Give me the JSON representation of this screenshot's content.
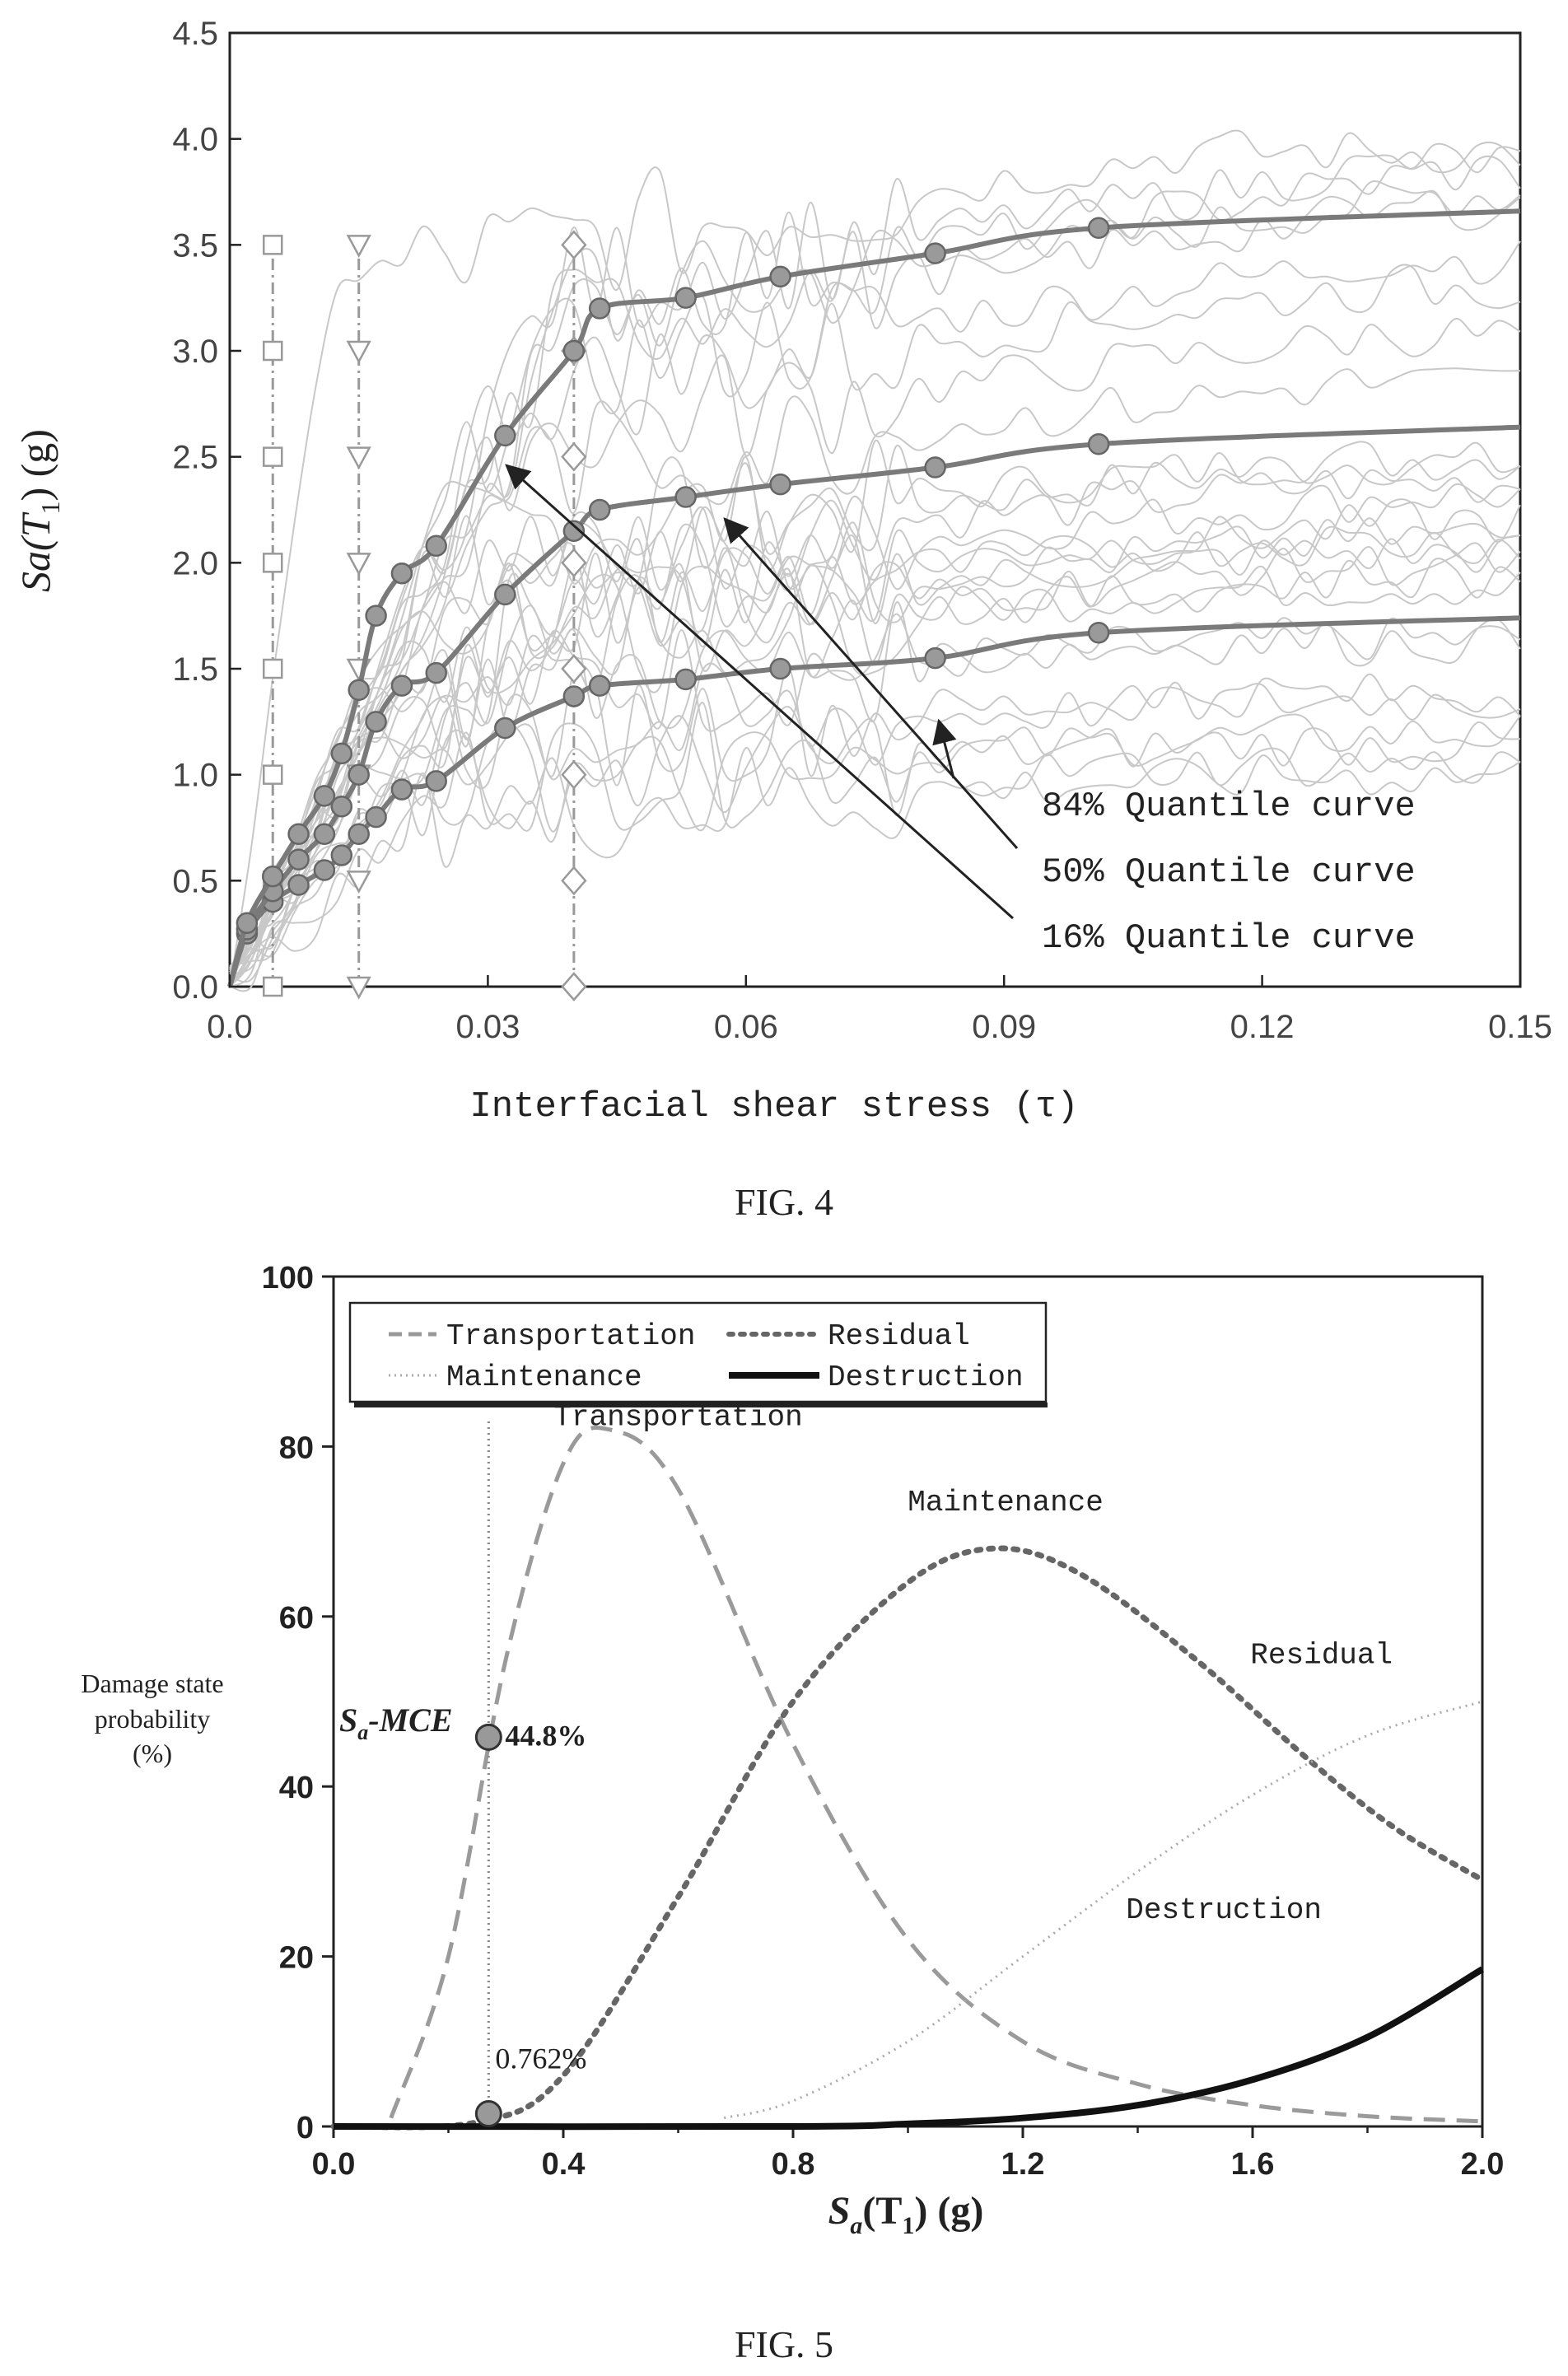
{
  "chart_data": [
    {
      "type": "line",
      "xlabel": "Interfacial shear stress (τ)",
      "ylabel": "Sa(T₁) (g)",
      "xlim": [
        0,
        0.15
      ],
      "ylim": [
        0,
        4.5
      ],
      "x_ticks": [
        "0.0",
        "0.03",
        "0.06",
        "0.09",
        "0.12",
        "0.15"
      ],
      "y_ticks": [
        "0.0",
        "0.5",
        "1.0",
        "1.5",
        "2.0",
        "2.5",
        "3.0",
        "3.5",
        "4.0",
        "4.5"
      ],
      "grid": false,
      "series": [
        {
          "x": [
            0,
            0.002,
            0.005,
            0.008,
            0.011,
            0.013,
            0.015,
            0.017,
            0.02,
            0.024,
            0.032,
            0.04,
            0.043,
            0.053,
            0.064,
            0.082,
            0.101,
            0.15
          ],
          "y": [
            0,
            0.25,
            0.4,
            0.48,
            0.55,
            0.62,
            0.72,
            0.8,
            0.93,
            0.97,
            1.22,
            1.37,
            1.42,
            1.45,
            1.5,
            1.55,
            1.67,
            1.74
          ]
        },
        {
          "x": [
            0,
            0.002,
            0.005,
            0.008,
            0.011,
            0.013,
            0.015,
            0.017,
            0.02,
            0.024,
            0.032,
            0.04,
            0.043,
            0.053,
            0.064,
            0.082,
            0.101,
            0.15
          ],
          "y": [
            0,
            0.27,
            0.45,
            0.6,
            0.72,
            0.85,
            1.0,
            1.25,
            1.42,
            1.48,
            1.85,
            2.15,
            2.25,
            2.31,
            2.37,
            2.45,
            2.56,
            2.64
          ]
        },
        {
          "x": [
            0,
            0.002,
            0.005,
            0.008,
            0.011,
            0.013,
            0.015,
            0.017,
            0.02,
            0.024,
            0.032,
            0.04,
            0.043,
            0.053,
            0.064,
            0.082,
            0.101,
            0.15
          ],
          "y": [
            0,
            0.3,
            0.52,
            0.72,
            0.9,
            1.1,
            1.4,
            1.75,
            1.95,
            2.08,
            2.6,
            3.0,
            3.2,
            3.25,
            3.35,
            3.46,
            3.58,
            3.66
          ]
        }
      ],
      "limit_markers": [
        {
          "x": 0.005,
          "marker": "square",
          "y": [
            0,
            0.5,
            1.0,
            1.5,
            2.0,
            2.5,
            3.0,
            3.5
          ]
        },
        {
          "x": 0.015,
          "marker": "triangle-down",
          "y": [
            0,
            0.5,
            1.0,
            1.5,
            2.0,
            2.5,
            3.0,
            3.5
          ]
        },
        {
          "x": 0.04,
          "marker": "diamond",
          "y": [
            0,
            0.5,
            1.0,
            1.5,
            2.0,
            2.5,
            3.0,
            3.5
          ]
        }
      ],
      "annotations": [
        "84% Quantile curve",
        "50% Quantile curve",
        "16% Quantile curve"
      ]
    },
    {
      "type": "line",
      "xlabel": "Sₐ(T₁) (g)",
      "ylabel": "Damage state probability (%)",
      "xlim": [
        0,
        2.0
      ],
      "ylim": [
        0,
        100
      ],
      "x_ticks": [
        "0.0",
        "0.4",
        "0.8",
        "1.2",
        "1.6",
        "2.0"
      ],
      "y_ticks": [
        "0",
        "20",
        "40",
        "60",
        "80",
        "100"
      ],
      "grid": false,
      "legend_position": "top-left",
      "series": [
        {
          "name": "Transportation",
          "style": "dashed",
          "x": [
            0.1,
            0.2,
            0.3,
            0.4,
            0.48,
            0.6,
            0.8,
            1.0,
            1.2,
            1.4,
            1.6,
            1.8,
            2.0
          ],
          "y": [
            1,
            20,
            55,
            78,
            82,
            75,
            45,
            22,
            10,
            5,
            2.5,
            1.2,
            0.6
          ]
        },
        {
          "name": "Residual",
          "style": "dotted",
          "x": [
            0.0,
            0.25,
            0.4,
            0.6,
            0.8,
            1.0,
            1.15,
            1.3,
            1.5,
            1.7,
            1.85,
            2.0
          ],
          "y": [
            0,
            0.5,
            6,
            27,
            50,
            64,
            68,
            65,
            55,
            43,
            35,
            29
          ]
        },
        {
          "name": "Maintenance",
          "style": "dotted-light",
          "x": [
            0.68,
            0.8,
            1.0,
            1.2,
            1.4,
            1.6,
            1.8,
            2.0
          ],
          "y": [
            1,
            3,
            10,
            20,
            30,
            39,
            46,
            50
          ]
        },
        {
          "name": "Destruction",
          "style": "solid-thick",
          "x": [
            0.0,
            0.8,
            1.0,
            1.2,
            1.4,
            1.6,
            1.8,
            2.0
          ],
          "y": [
            0,
            0,
            0.3,
            1,
            2.5,
            5.5,
            10.5,
            18.5
          ]
        }
      ],
      "mce": {
        "x": 0.27,
        "top": 83,
        "points": [
          {
            "y": 45.8,
            "label": "44.8%"
          },
          {
            "y": 1.5,
            "label": "0.762%"
          }
        ]
      },
      "mce_label": "Sₐ-MCE",
      "curve_labels": [
        {
          "text": "Transportation",
          "x": 0.6,
          "y": 82.5
        },
        {
          "text": "Maintenance",
          "x": 1.17,
          "y": 72.5
        },
        {
          "text": "Residual",
          "x": 1.72,
          "y": 54.5
        },
        {
          "text": "Destruction",
          "x": 1.55,
          "y": 24.5
        }
      ]
    }
  ],
  "figure_labels": {
    "fig4": "FIG. 4",
    "fig5": "FIG. 5"
  },
  "text": {
    "fig4_ylabel_main": "Sa(T",
    "fig4_ylabel_sub": "1",
    "fig4_ylabel_tail": ") (g)",
    "fig5_xlabel_main": "S",
    "fig5_xlabel_sub": "a",
    "fig5_xlabel_mid": "(T",
    "fig5_xlabel_sub2": "1",
    "fig5_xlabel_tail": ") (g)",
    "fig5_ylabel_1": "Damage state",
    "fig5_ylabel_2": "probability",
    "fig5_ylabel_3": "(%)",
    "mce_main": "S",
    "mce_sub": "a",
    "mce_tail": "-MCE",
    "legend": [
      "Transportation",
      "Residual",
      "Maintenance",
      "Destruction"
    ]
  }
}
